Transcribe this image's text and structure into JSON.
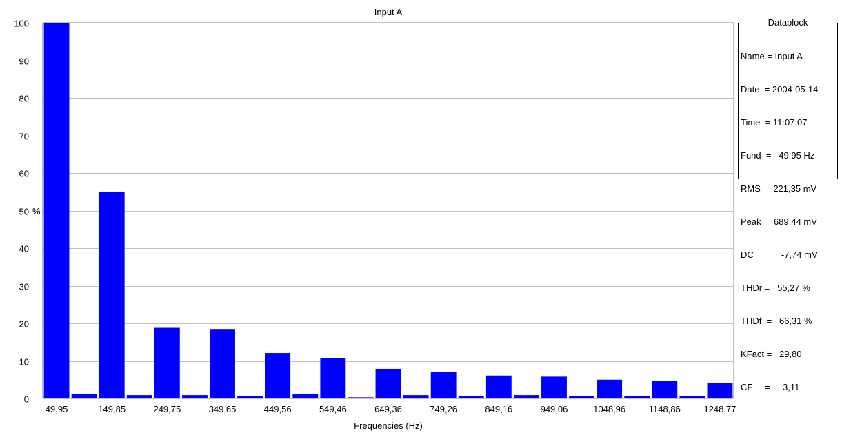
{
  "chart_data": {
    "type": "bar",
    "title": "Input A",
    "xlabel": "Frequencies (Hz)",
    "ylabel": "%",
    "ylim": [
      0,
      100
    ],
    "yticks": [
      0,
      10,
      20,
      30,
      40,
      50,
      60,
      70,
      80,
      90,
      100
    ],
    "grid": true,
    "categories": [
      "49,95",
      "",
      "149,85",
      "",
      "249,75",
      "",
      "349,65",
      "",
      "449,56",
      "",
      "549,46",
      "",
      "649,36",
      "",
      "749,26",
      "",
      "849,16",
      "",
      "949,06",
      "",
      "1048,96",
      "",
      "1148,86",
      "",
      "1248,77"
    ],
    "values": [
      100,
      1.2,
      55,
      0.9,
      18.8,
      0.9,
      18.5,
      0.6,
      12.1,
      1.1,
      10.7,
      0.3,
      7.9,
      0.9,
      7.1,
      0.6,
      6.1,
      0.9,
      5.8,
      0.6,
      5.0,
      0.6,
      4.6,
      0.6,
      4.2
    ],
    "bar_color": "#0000ff"
  },
  "datablock": {
    "title": "Datablock",
    "rows": [
      "Name = Input A",
      "Date  = 2004-05-14",
      "Time  = 11:07:07",
      "Fund  =   49,95 Hz",
      "RMS  = 221,35 mV",
      "Peak  = 689,44 mV",
      "DC     =    -7,74 mV",
      "THDr =   55,27 %",
      "THDf  =   66,31 %",
      "KFact =   29,80",
      "CF     =     3,11"
    ]
  }
}
